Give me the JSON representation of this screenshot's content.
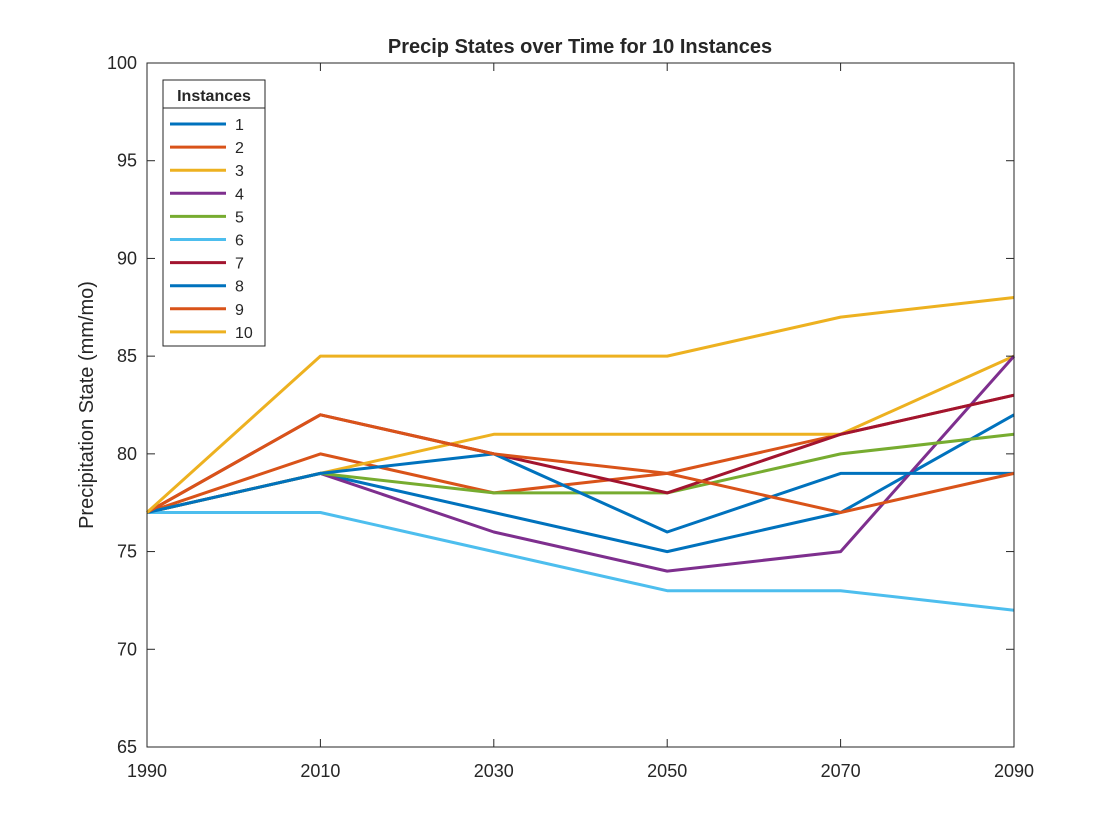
{
  "chart_data": {
    "type": "line",
    "title": "Precip States over Time for 10 Instances",
    "xlabel": "",
    "ylabel": "Precipitation State (mm/mo)",
    "x": [
      1990,
      2010,
      2030,
      2050,
      2070,
      2090
    ],
    "xlim": [
      1990,
      2090
    ],
    "ylim": [
      65,
      100
    ],
    "xticks": [
      1990,
      2010,
      2030,
      2050,
      2070,
      2090
    ],
    "yticks": [
      65,
      70,
      75,
      80,
      85,
      90,
      95,
      100
    ],
    "grid": false,
    "legend": {
      "title": "Instances",
      "placement": "top-left"
    },
    "series": [
      {
        "name": "1",
        "color": "#0072BD",
        "values": [
          77,
          79,
          77,
          75,
          77,
          82
        ]
      },
      {
        "name": "2",
        "color": "#D95319",
        "values": [
          77,
          80,
          78,
          79,
          81,
          83
        ]
      },
      {
        "name": "3",
        "color": "#EDB120",
        "values": [
          77,
          79,
          81,
          81,
          81,
          85
        ]
      },
      {
        "name": "4",
        "color": "#7E2F8E",
        "values": [
          77,
          79,
          76,
          74,
          75,
          85
        ]
      },
      {
        "name": "5",
        "color": "#77AC30",
        "values": [
          77,
          79,
          78,
          78,
          80,
          81
        ]
      },
      {
        "name": "6",
        "color": "#4DBEEE",
        "values": [
          77,
          77,
          75,
          73,
          73,
          72
        ]
      },
      {
        "name": "7",
        "color": "#A2142F",
        "values": [
          77,
          82,
          80,
          78,
          81,
          83
        ]
      },
      {
        "name": "8",
        "color": "#0072BD",
        "values": [
          77,
          79,
          80,
          76,
          79,
          79
        ]
      },
      {
        "name": "9",
        "color": "#D95319",
        "values": [
          77,
          82,
          80,
          79,
          77,
          79
        ]
      },
      {
        "name": "10",
        "color": "#EDB120",
        "values": [
          77,
          85,
          85,
          85,
          87,
          88
        ]
      }
    ]
  }
}
